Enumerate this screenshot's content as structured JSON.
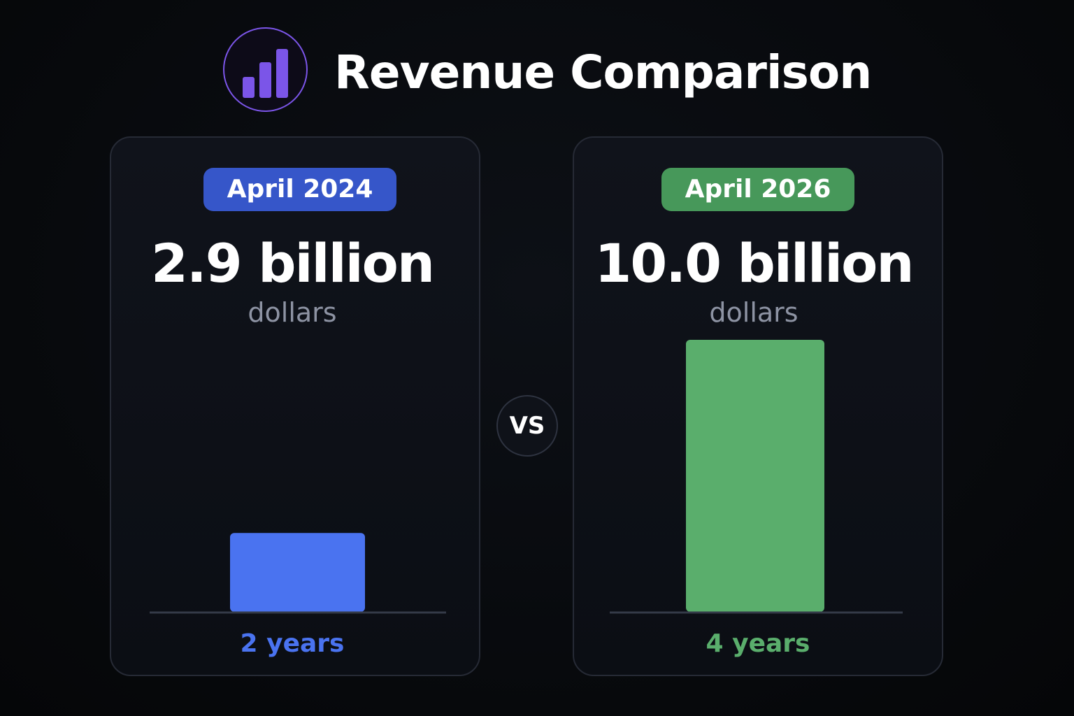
{
  "header": {
    "title": "Revenue Comparison",
    "icon": "bar-chart-icon",
    "icon_color": "#7b55e8"
  },
  "vs_label": "VS",
  "colors": {
    "left_accent": "#4a73f0",
    "left_pill": "#3656c9",
    "right_accent": "#5aae6c",
    "right_pill": "#47985a",
    "baseline": "#343a48"
  },
  "chart_data": {
    "type": "bar",
    "title": "Revenue Comparison",
    "categories": [
      "April 2024",
      "April 2026"
    ],
    "values": [
      2.9,
      10.0
    ],
    "ylabel": "",
    "xlabel": "",
    "ylim": [
      0,
      10.0
    ],
    "grid": false,
    "legend": "none",
    "bars": [
      {
        "date": "April 2024",
        "value": 2.9,
        "value_label": "2.9 billion",
        "unit": "dollars",
        "duration": "2 years",
        "color": "#4a73f0"
      },
      {
        "date": "April 2026",
        "value": 10.0,
        "value_label": "10.0 billion",
        "unit": "dollars",
        "duration": "4 years",
        "color": "#5aae6c"
      }
    ]
  }
}
